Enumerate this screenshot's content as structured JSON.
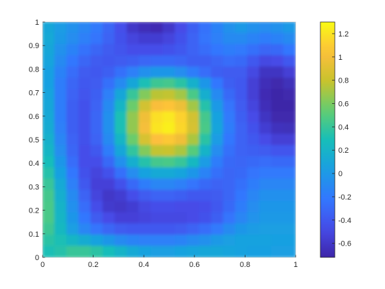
{
  "chart_data": {
    "type": "heatmap",
    "title": "",
    "xlabel": "",
    "ylabel": "",
    "xlim": [
      0,
      1
    ],
    "ylim": [
      0,
      1
    ],
    "x_ticks": [
      "0",
      "0.2",
      "0.4",
      "0.6",
      "0.8",
      "1"
    ],
    "y_ticks": [
      "0",
      "0.1",
      "0.2",
      "0.3",
      "0.4",
      "0.5",
      "0.6",
      "0.7",
      "0.8",
      "0.9",
      "1"
    ],
    "colorbar": {
      "colormap": "parula",
      "range": [
        -0.72,
        1.3
      ],
      "ticks": [
        "-0.6",
        "-0.4",
        "-0.2",
        "0",
        "0.2",
        "0.4",
        "0.6",
        "0.8",
        "1",
        "1.2"
      ]
    },
    "grid": {
      "nx": 21,
      "ny": 21,
      "x_start": 0,
      "x_end": 1,
      "y_start": 0,
      "y_end": 1
    },
    "rows_top_to_bottom": [
      [
        0.1,
        0.02,
        -0.05,
        -0.12,
        -0.2,
        -0.32,
        -0.45,
        -0.6,
        -0.66,
        -0.68,
        -0.6,
        -0.48,
        -0.36,
        -0.25,
        -0.15,
        -0.05,
        0.0,
        -0.05,
        -0.08,
        -0.05,
        0.0
      ],
      [
        0.12,
        0.0,
        -0.08,
        -0.16,
        -0.24,
        -0.34,
        -0.44,
        -0.52,
        -0.56,
        -0.56,
        -0.52,
        -0.44,
        -0.34,
        -0.24,
        -0.16,
        -0.1,
        -0.1,
        -0.14,
        -0.18,
        -0.15,
        -0.1
      ],
      [
        0.1,
        -0.05,
        -0.15,
        -0.25,
        -0.32,
        -0.38,
        -0.42,
        -0.46,
        -0.46,
        -0.46,
        -0.44,
        -0.4,
        -0.34,
        -0.28,
        -0.22,
        -0.18,
        -0.2,
        -0.26,
        -0.32,
        -0.3,
        -0.22
      ],
      [
        0.08,
        -0.1,
        -0.22,
        -0.32,
        -0.38,
        -0.4,
        -0.38,
        -0.36,
        -0.32,
        -0.3,
        -0.3,
        -0.32,
        -0.36,
        -0.36,
        -0.32,
        -0.28,
        -0.3,
        -0.4,
        -0.5,
        -0.48,
        -0.4
      ],
      [
        0.05,
        -0.15,
        -0.28,
        -0.38,
        -0.4,
        -0.36,
        -0.26,
        -0.16,
        -0.06,
        -0.02,
        -0.02,
        -0.08,
        -0.18,
        -0.28,
        -0.36,
        -0.38,
        -0.38,
        -0.5,
        -0.62,
        -0.62,
        -0.55
      ],
      [
        0.05,
        -0.18,
        -0.32,
        -0.4,
        -0.38,
        -0.26,
        -0.1,
        0.1,
        0.3,
        0.42,
        0.44,
        0.36,
        0.18,
        -0.02,
        -0.22,
        -0.36,
        -0.4,
        -0.55,
        -0.66,
        -0.7,
        -0.65
      ],
      [
        0.08,
        -0.18,
        -0.34,
        -0.42,
        -0.36,
        -0.16,
        0.1,
        0.4,
        0.62,
        0.76,
        0.78,
        0.7,
        0.46,
        0.16,
        -0.1,
        -0.3,
        -0.4,
        -0.55,
        -0.68,
        -0.72,
        -0.7
      ],
      [
        0.1,
        -0.18,
        -0.36,
        -0.44,
        -0.34,
        -0.1,
        0.22,
        0.56,
        0.84,
        1.02,
        1.06,
        0.96,
        0.7,
        0.34,
        0.0,
        -0.24,
        -0.38,
        -0.52,
        -0.66,
        -0.72,
        -0.72
      ],
      [
        0.12,
        -0.18,
        -0.36,
        -0.44,
        -0.32,
        -0.06,
        0.3,
        0.66,
        0.98,
        1.18,
        1.22,
        1.12,
        0.84,
        0.44,
        0.06,
        -0.2,
        -0.36,
        -0.48,
        -0.62,
        -0.7,
        -0.7
      ],
      [
        0.14,
        -0.16,
        -0.36,
        -0.44,
        -0.32,
        -0.06,
        0.3,
        0.66,
        1.0,
        1.2,
        1.25,
        1.14,
        0.86,
        0.46,
        0.08,
        -0.18,
        -0.34,
        -0.44,
        -0.56,
        -0.64,
        -0.65
      ],
      [
        0.18,
        -0.12,
        -0.34,
        -0.44,
        -0.34,
        -0.1,
        0.22,
        0.56,
        0.86,
        1.04,
        1.08,
        0.98,
        0.72,
        0.36,
        0.02,
        -0.22,
        -0.34,
        -0.4,
        -0.48,
        -0.55,
        -0.55
      ],
      [
        0.22,
        -0.08,
        -0.32,
        -0.46,
        -0.4,
        -0.18,
        0.1,
        0.38,
        0.62,
        0.78,
        0.8,
        0.72,
        0.5,
        0.2,
        -0.08,
        -0.26,
        -0.34,
        -0.36,
        -0.38,
        -0.42,
        -0.42
      ],
      [
        0.28,
        -0.02,
        -0.28,
        -0.46,
        -0.46,
        -0.3,
        -0.06,
        0.16,
        0.34,
        0.44,
        0.46,
        0.4,
        0.24,
        0.02,
        -0.18,
        -0.3,
        -0.32,
        -0.3,
        -0.28,
        -0.3,
        -0.3
      ],
      [
        0.34,
        0.05,
        -0.22,
        -0.44,
        -0.52,
        -0.44,
        -0.26,
        -0.08,
        0.06,
        0.12,
        0.12,
        0.08,
        -0.02,
        -0.14,
        -0.26,
        -0.32,
        -0.3,
        -0.24,
        -0.2,
        -0.2,
        -0.2
      ],
      [
        0.4,
        0.12,
        -0.16,
        -0.4,
        -0.54,
        -0.54,
        -0.44,
        -0.3,
        -0.18,
        -0.12,
        -0.12,
        -0.16,
        -0.24,
        -0.3,
        -0.34,
        -0.32,
        -0.26,
        -0.18,
        -0.12,
        -0.12,
        -0.12
      ],
      [
        0.44,
        0.16,
        -0.1,
        -0.34,
        -0.52,
        -0.6,
        -0.56,
        -0.46,
        -0.38,
        -0.34,
        -0.34,
        -0.36,
        -0.4,
        -0.4,
        -0.38,
        -0.32,
        -0.22,
        -0.12,
        -0.06,
        -0.06,
        -0.06
      ],
      [
        0.46,
        0.2,
        -0.06,
        -0.28,
        -0.46,
        -0.58,
        -0.6,
        -0.56,
        -0.5,
        -0.46,
        -0.46,
        -0.48,
        -0.48,
        -0.46,
        -0.4,
        -0.3,
        -0.18,
        -0.08,
        -0.02,
        -0.02,
        -0.02
      ],
      [
        0.46,
        0.22,
        -0.02,
        -0.22,
        -0.38,
        -0.48,
        -0.54,
        -0.54,
        -0.52,
        -0.5,
        -0.5,
        -0.5,
        -0.48,
        -0.44,
        -0.36,
        -0.24,
        -0.12,
        -0.04,
        0.0,
        0.0,
        0.0
      ],
      [
        0.42,
        0.24,
        0.04,
        -0.12,
        -0.24,
        -0.32,
        -0.38,
        -0.4,
        -0.4,
        -0.4,
        -0.4,
        -0.38,
        -0.34,
        -0.28,
        -0.2,
        -0.1,
        -0.02,
        0.02,
        0.04,
        0.04,
        0.04
      ],
      [
        0.36,
        0.3,
        0.22,
        0.14,
        0.06,
        -0.02,
        -0.1,
        -0.14,
        -0.16,
        -0.16,
        -0.16,
        -0.14,
        -0.1,
        -0.06,
        0.0,
        0.04,
        0.06,
        0.06,
        0.06,
        0.05,
        0.05
      ],
      [
        0.3,
        0.34,
        0.4,
        0.4,
        0.36,
        0.28,
        0.2,
        0.12,
        0.06,
        0.04,
        0.04,
        0.06,
        0.08,
        0.1,
        0.1,
        0.08,
        0.06,
        0.05,
        0.05,
        0.04,
        0.04
      ]
    ]
  }
}
